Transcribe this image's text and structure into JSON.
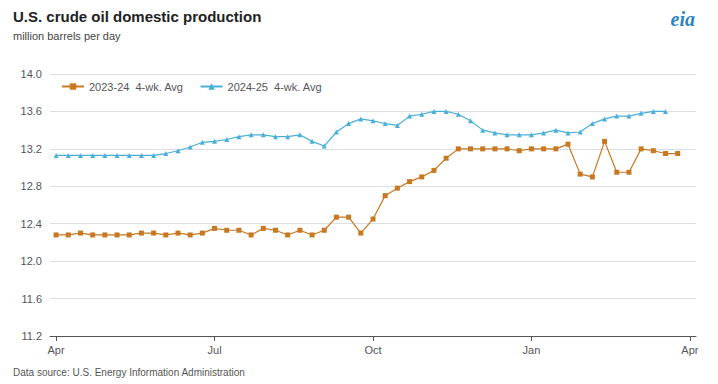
{
  "chart_data": {
    "type": "line",
    "title": "U.S. crude oil domestic production",
    "subtitle": "million barrels per day",
    "source": "Data source: U.S. Energy Information Administration",
    "annotations": [
      {
        "text": "eia",
        "color": "#2e86c1"
      }
    ],
    "categories": [
      "Apr",
      null,
      null,
      null,
      null,
      null,
      null,
      null,
      null,
      null,
      null,
      null,
      null,
      "Jul",
      null,
      null,
      null,
      null,
      null,
      null,
      null,
      null,
      null,
      null,
      null,
      null,
      "Oct",
      null,
      null,
      null,
      null,
      null,
      null,
      null,
      null,
      null,
      null,
      null,
      null,
      "Jan",
      null,
      null,
      null,
      null,
      null,
      null,
      null,
      null,
      null,
      null,
      null,
      null,
      "Apr"
    ],
    "series": [
      {
        "name": "2023-24  4-wk. Avg",
        "color": "#c87820",
        "marker": "square",
        "values": [
          12.28,
          12.28,
          12.3,
          12.28,
          12.28,
          12.28,
          12.28,
          12.3,
          12.3,
          12.28,
          12.3,
          12.28,
          12.3,
          12.35,
          12.33,
          12.33,
          12.28,
          12.35,
          12.33,
          12.28,
          12.33,
          12.28,
          12.33,
          12.47,
          12.47,
          12.3,
          12.45,
          12.7,
          12.78,
          12.85,
          12.9,
          12.97,
          13.1,
          13.2,
          13.2,
          13.2,
          13.2,
          13.2,
          13.18,
          13.2,
          13.2,
          13.2,
          13.25,
          12.93,
          12.9,
          13.28,
          12.95,
          12.95,
          13.2,
          13.18,
          13.15,
          13.15,
          null
        ]
      },
      {
        "name": "2024-25  4-wk. Avg",
        "color": "#4ab0d9",
        "marker": "triangle",
        "values": [
          13.13,
          13.13,
          13.13,
          13.13,
          13.13,
          13.13,
          13.13,
          13.13,
          13.13,
          13.15,
          13.18,
          13.22,
          13.27,
          13.28,
          13.3,
          13.33,
          13.35,
          13.35,
          13.33,
          13.33,
          13.35,
          13.28,
          13.23,
          13.38,
          13.47,
          13.52,
          13.5,
          13.47,
          13.45,
          13.55,
          13.57,
          13.6,
          13.6,
          13.57,
          13.5,
          13.4,
          13.37,
          13.35,
          13.35,
          13.35,
          13.37,
          13.4,
          13.37,
          13.38,
          13.47,
          13.52,
          13.55,
          13.55,
          13.58,
          13.6,
          13.6,
          null,
          null
        ]
      }
    ],
    "ylim": [
      11.2,
      14.0
    ],
    "yticks": [
      11.2,
      11.6,
      {
        "value": 12.0,
        "label": "12.0"
      },
      12.4,
      12.8,
      13.2,
      13.6,
      {
        "value": 14.0,
        "label": "14.0"
      }
    ],
    "grid": true,
    "legend": "upper left"
  }
}
